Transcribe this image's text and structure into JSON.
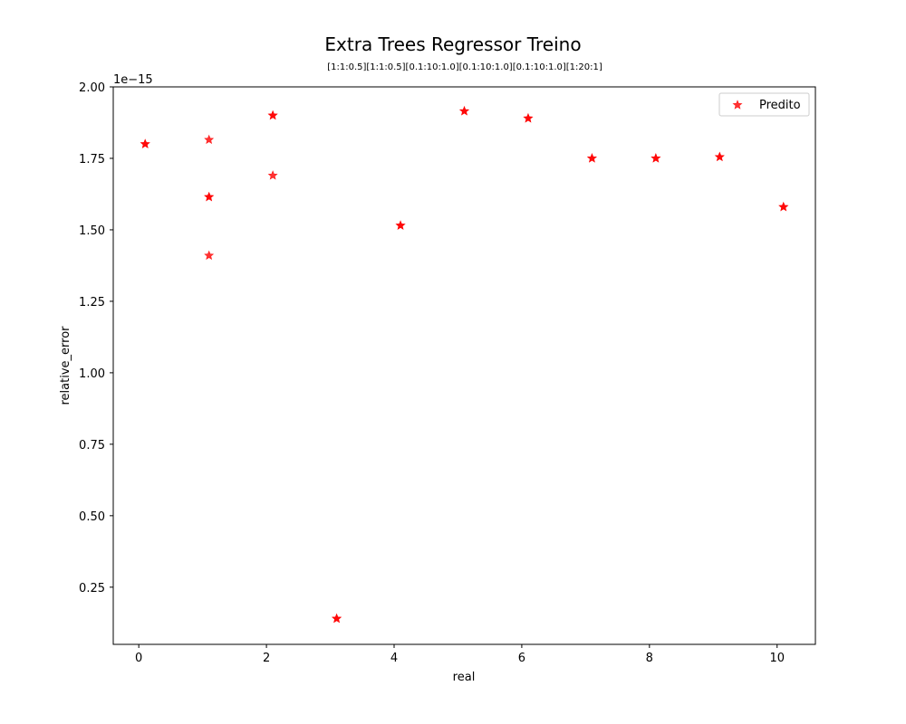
{
  "chart_data": {
    "type": "scatter",
    "title": "Extra Trees Regressor Treino",
    "subtitle": "[1:1:0.5][1:1:0.5][0.1:10:1.0][0.1:10:1.0][0.1:10:1.0][1:20:1]",
    "xlabel": "real",
    "ylabel": "relative_error",
    "y_offset_label": "1e−15",
    "xlim": [
      -0.4,
      10.6
    ],
    "ylim": [
      0.05,
      2.0
    ],
    "x_ticks": [
      0,
      2,
      4,
      6,
      8,
      10
    ],
    "x_tick_labels": [
      "0",
      "2",
      "4",
      "6",
      "8",
      "10"
    ],
    "y_ticks": [
      0.25,
      0.5,
      0.75,
      1.0,
      1.25,
      1.5,
      1.75,
      2.0
    ],
    "y_tick_labels": [
      "0.25",
      "0.50",
      "0.75",
      "1.00",
      "1.25",
      "1.50",
      "1.75",
      "2.00"
    ],
    "grid": false,
    "legend_position": "top-right",
    "series": [
      {
        "name": "Predito",
        "marker": "star",
        "color": "#ff0000",
        "points": [
          {
            "x": 0.1,
            "y": 1.8
          },
          {
            "x": 0.1,
            "y": 1.8
          },
          {
            "x": 1.1,
            "y": 1.815
          },
          {
            "x": 1.1,
            "y": 1.615
          },
          {
            "x": 1.1,
            "y": 1.615
          },
          {
            "x": 1.1,
            "y": 1.41
          },
          {
            "x": 2.1,
            "y": 1.9
          },
          {
            "x": 2.1,
            "y": 1.9
          },
          {
            "x": 2.1,
            "y": 1.69
          },
          {
            "x": 3.1,
            "y": 0.14
          },
          {
            "x": 3.1,
            "y": 0.14
          },
          {
            "x": 4.1,
            "y": 1.515
          },
          {
            "x": 4.1,
            "y": 1.515
          },
          {
            "x": 5.1,
            "y": 1.915
          },
          {
            "x": 5.1,
            "y": 1.915
          },
          {
            "x": 6.1,
            "y": 1.89
          },
          {
            "x": 6.1,
            "y": 1.89
          },
          {
            "x": 7.1,
            "y": 1.75
          },
          {
            "x": 7.1,
            "y": 1.75
          },
          {
            "x": 8.1,
            "y": 1.75
          },
          {
            "x": 8.1,
            "y": 1.75
          },
          {
            "x": 9.1,
            "y": 1.755
          },
          {
            "x": 9.1,
            "y": 1.755
          },
          {
            "x": 10.1,
            "y": 1.58
          },
          {
            "x": 10.1,
            "y": 1.58
          }
        ]
      }
    ]
  }
}
